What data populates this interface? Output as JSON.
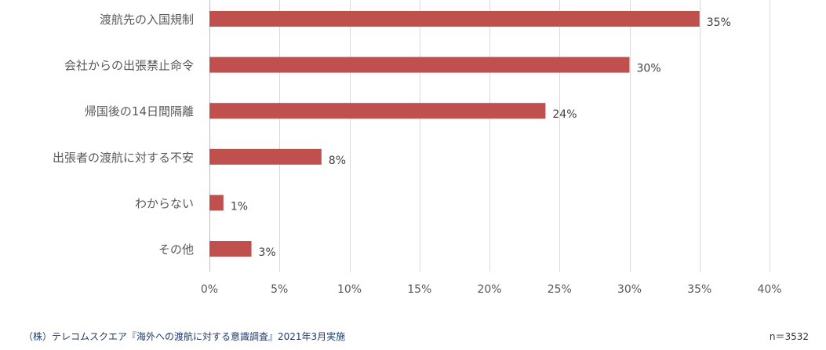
{
  "chart_data": {
    "type": "bar",
    "orientation": "horizontal",
    "categories": [
      "渡航先の入国規制",
      "会社からの出張禁止命令",
      "帰国後の14日間隔離",
      "出張者の渡航に対する不安",
      "わからない",
      "その他"
    ],
    "values": [
      35,
      30,
      24,
      8,
      1,
      3
    ],
    "data_labels": [
      "35%",
      "30%",
      "24%",
      "8%",
      "1%",
      "3%"
    ],
    "x_ticks": [
      0,
      5,
      10,
      15,
      20,
      25,
      30,
      35,
      40
    ],
    "x_tick_labels": [
      "0%",
      "5%",
      "10%",
      "15%",
      "20%",
      "25%",
      "30%",
      "35%",
      "40%"
    ],
    "xlim": [
      0,
      40
    ],
    "grid": "vertical",
    "bar_color": "#c0504d",
    "title": "",
    "xlabel": "",
    "ylabel": ""
  },
  "footer": {
    "source": "（株）テレコムスクエア『海外への渡航に対する意識調査』2021年3月実施",
    "sample": "n＝3532"
  }
}
